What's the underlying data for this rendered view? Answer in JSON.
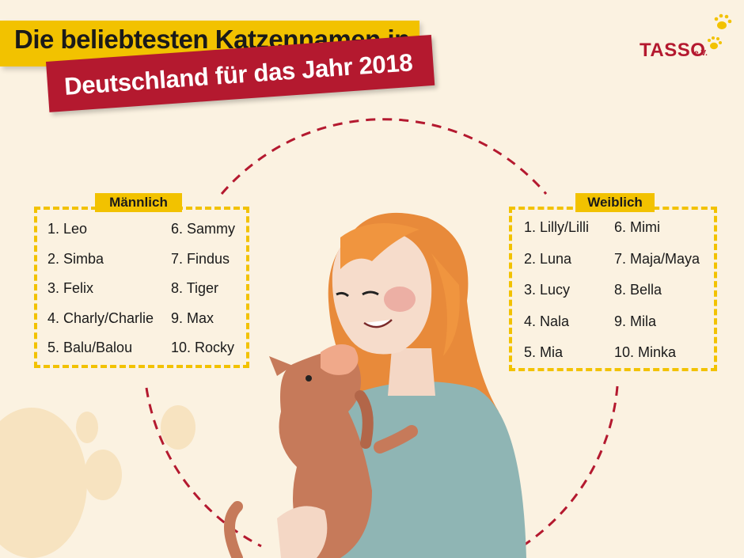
{
  "title": {
    "line1": "Die beliebtesten Katzennamen in",
    "line2": "Deutschland für das Jahr 2018"
  },
  "logo": {
    "name": "TASSO",
    "suffix": "e.V."
  },
  "male": {
    "label": "Männlich",
    "col1": [
      "1. Leo",
      "2. Simba",
      "3. Felix",
      "4. Charly/Charlie",
      "5. Balu/Balou"
    ],
    "col2": [
      "6. Sammy",
      "7. Findus",
      "8. Tiger",
      "9. Max",
      "10. Rocky"
    ]
  },
  "female": {
    "label": "Weiblich",
    "col1": [
      "1. Lilly/Lilli",
      "2. Luna",
      "3. Lucy",
      "4. Nala",
      "5. Mia"
    ],
    "col2": [
      "6. Mimi",
      "7. Maja/Maya",
      "8. Bella",
      "9. Mila",
      "10. Minka"
    ]
  },
  "colors": {
    "yellow": "#f2c200",
    "red": "#b4192f",
    "background": "#fbf2e1"
  },
  "icons": [
    "paw-prints-icon"
  ]
}
